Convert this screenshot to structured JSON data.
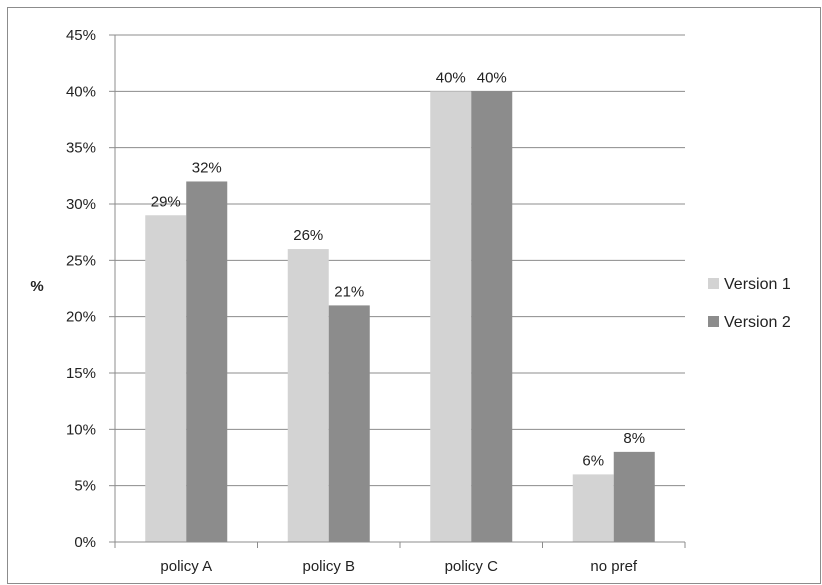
{
  "chart_data": {
    "type": "bar",
    "title": "",
    "xlabel": "",
    "ylabel": "%",
    "ylim": [
      0,
      45
    ],
    "ytick_step": 5,
    "ytick_format": "{v}%",
    "grid": true,
    "legend_position": "right",
    "categories": [
      "policy A",
      "policy B",
      "policy C",
      "no pref"
    ],
    "series": [
      {
        "name": "Version 1",
        "color": "#d3d3d3",
        "values": [
          29,
          26,
          40,
          6
        ],
        "labels": [
          "29%",
          "26%",
          "40%",
          "6%"
        ]
      },
      {
        "name": "Version 2",
        "color": "#8c8c8c",
        "values": [
          32,
          21,
          40,
          8
        ],
        "labels": [
          "32%",
          "21%",
          "40%",
          "8%"
        ]
      }
    ]
  }
}
